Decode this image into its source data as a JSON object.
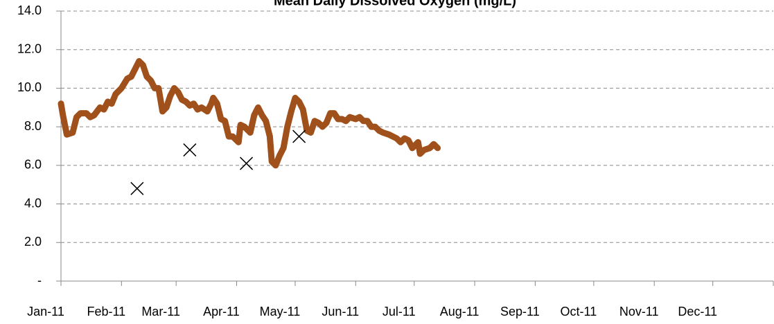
{
  "chart_data": {
    "type": "line",
    "title": "Mean Daily Dissolved Oxygen (mg/L)",
    "xlim": [
      0,
      365
    ],
    "xticks": [
      {
        "value": 0,
        "label": "Jan-11"
      },
      {
        "value": 31,
        "label": "Feb-11"
      },
      {
        "value": 59,
        "label": "Mar-11"
      },
      {
        "value": 90,
        "label": "Apr-11"
      },
      {
        "value": 120,
        "label": "May-11"
      },
      {
        "value": 151,
        "label": "Jun-11"
      },
      {
        "value": 181,
        "label": "Jul-11"
      },
      {
        "value": 212,
        "label": "Aug-11"
      },
      {
        "value": 243,
        "label": "Sep-11"
      },
      {
        "value": 273,
        "label": "Oct-11"
      },
      {
        "value": 304,
        "label": "Nov-11"
      },
      {
        "value": 334,
        "label": "Dec-11"
      }
    ],
    "ylim": [
      0,
      14
    ],
    "yticks": [
      {
        "value": 0,
        "label": "-"
      },
      {
        "value": 2,
        "label": "2.0"
      },
      {
        "value": 4,
        "label": "4.0"
      },
      {
        "value": 6,
        "label": "6.0"
      },
      {
        "value": 8,
        "label": "8.0"
      },
      {
        "value": 10,
        "label": "10.0"
      },
      {
        "value": 12,
        "label": "12.0"
      },
      {
        "value": 14,
        "label": "14.0"
      }
    ],
    "grid": true,
    "series": [
      {
        "type": "line",
        "color": "#a0501a",
        "x": [
          0,
          1,
          3,
          6,
          8,
          10,
          13,
          15,
          17,
          20,
          22,
          24,
          26,
          28,
          31,
          34,
          36,
          38,
          40,
          42,
          44,
          46,
          48,
          50,
          52,
          54,
          56,
          58,
          60,
          62,
          64,
          66,
          68,
          70,
          72,
          75,
          77,
          78,
          80,
          82,
          84,
          86,
          88,
          91,
          92,
          94,
          97,
          99,
          101,
          103,
          105,
          107,
          108,
          110,
          112,
          114,
          116,
          118,
          120,
          122,
          124,
          126,
          128,
          130,
          132,
          134,
          136,
          138,
          140,
          142,
          144,
          146,
          148,
          151,
          153,
          155,
          157,
          159,
          161,
          163,
          165,
          168,
          170,
          172,
          174,
          176,
          178,
          180,
          183,
          184,
          186,
          189,
          191,
          193
        ],
        "values": [
          9.2,
          8.6,
          7.6,
          7.7,
          8.5,
          8.7,
          8.7,
          8.5,
          8.6,
          9.0,
          8.9,
          9.3,
          9.2,
          9.7,
          10.0,
          10.5,
          10.6,
          11.0,
          11.4,
          11.2,
          10.6,
          10.4,
          10.0,
          10.0,
          8.8,
          9.0,
          9.6,
          10.0,
          9.8,
          9.4,
          9.3,
          9.1,
          9.2,
          8.9,
          9.0,
          8.8,
          9.2,
          9.5,
          9.2,
          8.4,
          8.3,
          7.5,
          7.5,
          7.2,
          8.1,
          8.0,
          7.7,
          8.6,
          9.0,
          8.6,
          8.3,
          7.5,
          6.2,
          6.0,
          6.5,
          6.9,
          8.0,
          8.8,
          9.5,
          9.3,
          8.9,
          7.8,
          7.7,
          8.3,
          8.2,
          8.0,
          8.2,
          8.7,
          8.7,
          8.4,
          8.4,
          8.3,
          8.5,
          8.4,
          8.5,
          8.3,
          8.3,
          8.0,
          8.0,
          7.8,
          7.7,
          7.6,
          7.5,
          7.4,
          7.2,
          7.4,
          7.3,
          6.9,
          7.2,
          6.6,
          6.8,
          6.9,
          7.1,
          6.9
        ]
      },
      {
        "type": "scatter",
        "marker": "x",
        "color": "#000000",
        "x": [
          39,
          66,
          95,
          122
        ],
        "values": [
          4.8,
          6.8,
          6.1,
          7.5
        ]
      }
    ]
  }
}
